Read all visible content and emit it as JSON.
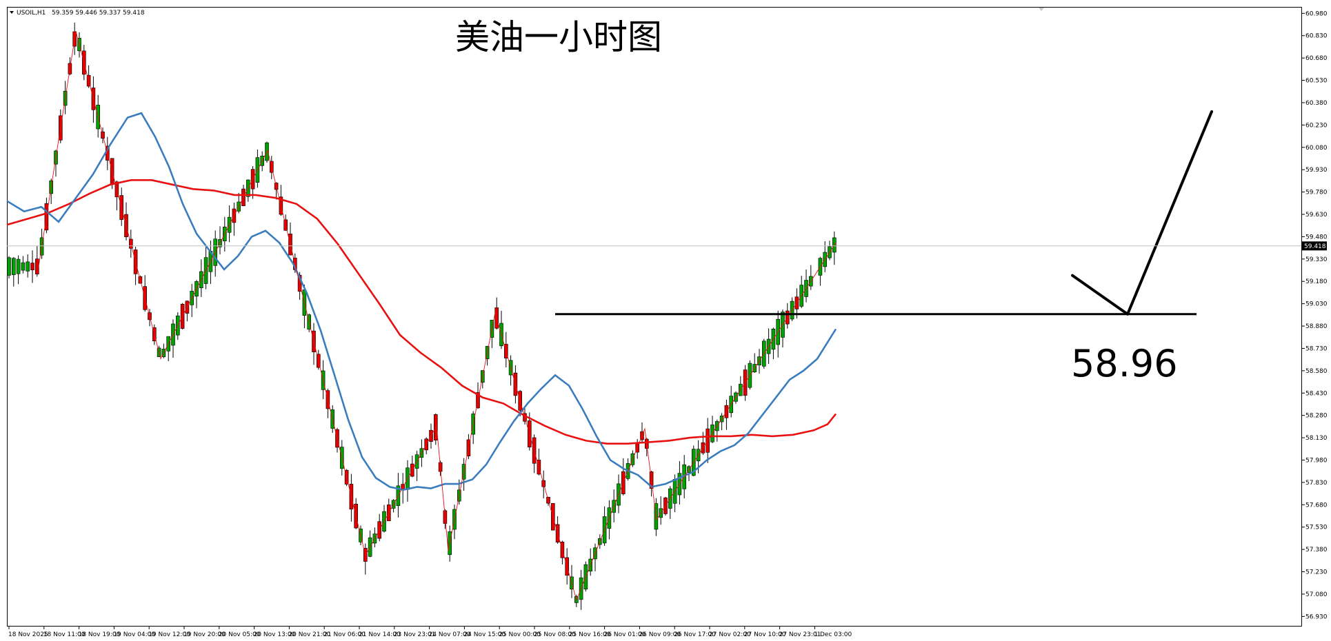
{
  "chart_data": {
    "type": "candlestick",
    "symbol": "USOIL,H1",
    "ohlc_header": "59.359 59.446 59.337 59.418",
    "title": "美油一小时图",
    "annotation_level_label": "58.96",
    "current_price_label": "59.418",
    "current_price": 59.418,
    "support_level": 58.96,
    "ylim": [
      56.89,
      61.0
    ],
    "y_ticks": [
      "60.980",
      "60.830",
      "60.680",
      "60.530",
      "60.380",
      "60.230",
      "60.080",
      "59.930",
      "59.780",
      "59.630",
      "59.480",
      "59.330",
      "59.180",
      "59.030",
      "58.880",
      "58.730",
      "58.580",
      "58.430",
      "58.280",
      "58.130",
      "57.980",
      "57.830",
      "57.680",
      "57.530",
      "57.380",
      "57.230",
      "57.080",
      "56.930"
    ],
    "x_ticks": [
      "18 Nov 2025",
      "18 Nov 11:00",
      "18 Nov 19:00",
      "19 Nov 04:00",
      "19 Nov 12:00",
      "19 Nov 20:00",
      "20 Nov 05:00",
      "20 Nov 13:00",
      "20 Nov 21:00",
      "21 Nov 06:00",
      "21 Nov 14:00",
      "23 Nov 23:01",
      "24 Nov 07:00",
      "24 Nov 15:00",
      "25 Nov 00:00",
      "25 Nov 08:00",
      "25 Nov 16:00",
      "26 Nov 01:00",
      "26 Nov 09:00",
      "26 Nov 17:00",
      "27 Nov 02:00",
      "27 Nov 10:00",
      "27 Nov 23:01",
      "1 Dec 03:00"
    ],
    "grid": false,
    "colors": {
      "bull": "#00a000",
      "bear": "#e00000",
      "ma_fast": "#3a7dbe",
      "ma_slow": "#e81010",
      "zigzag": "#e81010",
      "level_line": "#000000",
      "arrow": "#000000"
    },
    "zigzag_points": [
      [
        56,
        59.28
      ],
      [
        110,
        60.86
      ],
      [
        233,
        58.66
      ],
      [
        388,
        60.06
      ],
      [
        530,
        57.34
      ],
      [
        633,
        58.21
      ],
      [
        650,
        57.37
      ],
      [
        718,
        58.97
      ],
      [
        836,
        57.04
      ],
      [
        935,
        58.19
      ],
      [
        952,
        57.58
      ],
      [
        1212,
        59.44
      ]
    ],
    "ma_fast": [
      [
        10,
        59.72
      ],
      [
        35,
        59.65
      ],
      [
        60,
        59.68
      ],
      [
        85,
        59.58
      ],
      [
        110,
        59.74
      ],
      [
        135,
        59.9
      ],
      [
        160,
        60.1
      ],
      [
        185,
        60.28
      ],
      [
        205,
        60.31
      ],
      [
        225,
        60.15
      ],
      [
        245,
        59.95
      ],
      [
        265,
        59.7
      ],
      [
        285,
        59.5
      ],
      [
        305,
        59.38
      ],
      [
        325,
        59.26
      ],
      [
        345,
        59.35
      ],
      [
        365,
        59.48
      ],
      [
        385,
        59.52
      ],
      [
        405,
        59.44
      ],
      [
        425,
        59.3
      ],
      [
        445,
        59.1
      ],
      [
        465,
        58.85
      ],
      [
        485,
        58.55
      ],
      [
        505,
        58.25
      ],
      [
        525,
        58.0
      ],
      [
        545,
        57.86
      ],
      [
        565,
        57.8
      ],
      [
        585,
        57.78
      ],
      [
        605,
        57.8
      ],
      [
        625,
        57.79
      ],
      [
        645,
        57.82
      ],
      [
        665,
        57.82
      ],
      [
        685,
        57.85
      ],
      [
        705,
        57.95
      ],
      [
        725,
        58.1
      ],
      [
        745,
        58.24
      ],
      [
        765,
        58.36
      ],
      [
        785,
        58.46
      ],
      [
        805,
        58.55
      ],
      [
        825,
        58.48
      ],
      [
        845,
        58.32
      ],
      [
        865,
        58.14
      ],
      [
        885,
        57.98
      ],
      [
        905,
        57.92
      ],
      [
        925,
        57.88
      ],
      [
        945,
        57.8
      ],
      [
        965,
        57.82
      ],
      [
        985,
        57.86
      ],
      [
        1005,
        57.9
      ],
      [
        1025,
        57.98
      ],
      [
        1045,
        58.04
      ],
      [
        1065,
        58.08
      ],
      [
        1085,
        58.16
      ],
      [
        1105,
        58.28
      ],
      [
        1125,
        58.4
      ],
      [
        1145,
        58.52
      ],
      [
        1165,
        58.58
      ],
      [
        1185,
        58.66
      ],
      [
        1212,
        58.86
      ]
    ],
    "ma_slow": [
      [
        10,
        59.56
      ],
      [
        40,
        59.6
      ],
      [
        70,
        59.64
      ],
      [
        100,
        59.7
      ],
      [
        130,
        59.77
      ],
      [
        160,
        59.83
      ],
      [
        190,
        59.86
      ],
      [
        220,
        59.86
      ],
      [
        250,
        59.83
      ],
      [
        280,
        59.8
      ],
      [
        310,
        59.79
      ],
      [
        340,
        59.76
      ],
      [
        370,
        59.76
      ],
      [
        400,
        59.74
      ],
      [
        430,
        59.7
      ],
      [
        460,
        59.6
      ],
      [
        490,
        59.43
      ],
      [
        520,
        59.23
      ],
      [
        550,
        59.03
      ],
      [
        580,
        58.82
      ],
      [
        610,
        58.7
      ],
      [
        640,
        58.6
      ],
      [
        670,
        58.48
      ],
      [
        700,
        58.4
      ],
      [
        730,
        58.36
      ],
      [
        760,
        58.28
      ],
      [
        790,
        58.21
      ],
      [
        820,
        58.15
      ],
      [
        850,
        58.11
      ],
      [
        880,
        58.09
      ],
      [
        910,
        58.09
      ],
      [
        940,
        58.1
      ],
      [
        970,
        58.11
      ],
      [
        1000,
        58.13
      ],
      [
        1030,
        58.14
      ],
      [
        1060,
        58.14
      ],
      [
        1090,
        58.15
      ],
      [
        1120,
        58.14
      ],
      [
        1150,
        58.15
      ],
      [
        1180,
        58.18
      ],
      [
        1200,
        58.22
      ],
      [
        1212,
        58.29
      ]
    ]
  }
}
